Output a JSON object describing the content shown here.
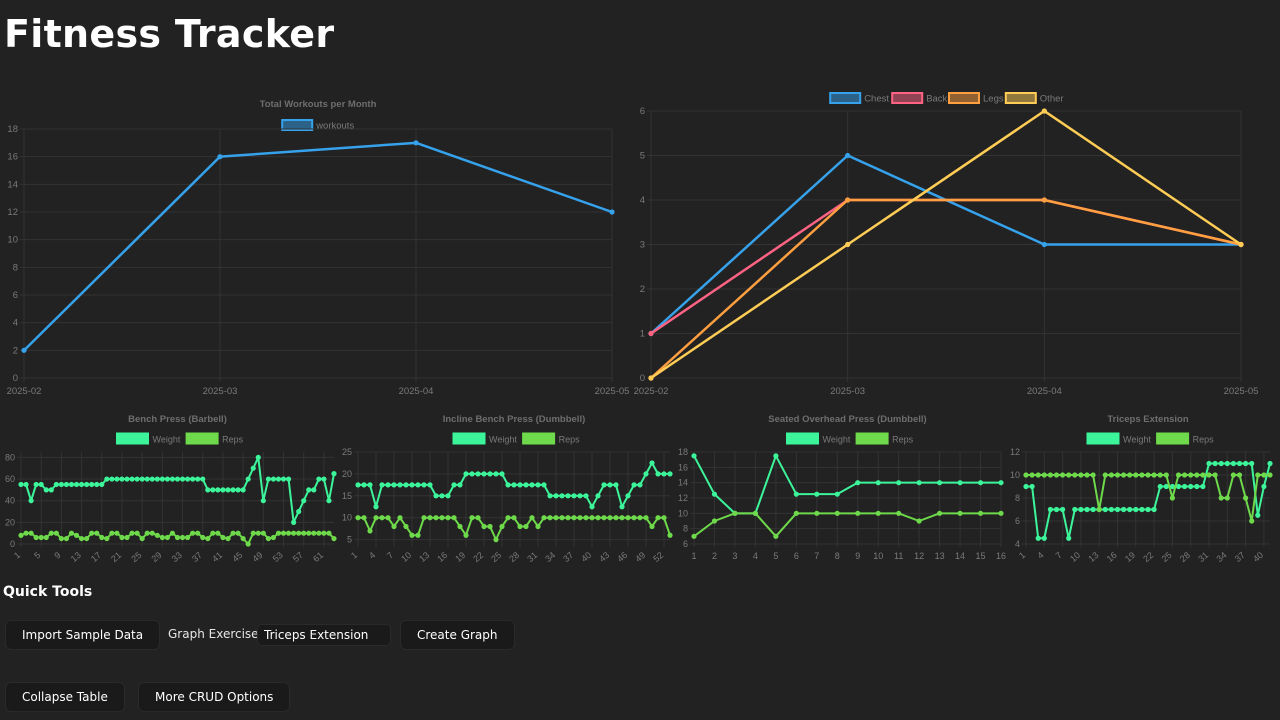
{
  "page": {
    "title": "Fitness Tracker",
    "quick_tools": {
      "heading": "Quick Tools",
      "import_label": "Import Sample Data",
      "graph_exercise_label": "Graph Exercise:",
      "graph_exercise_value": "Triceps Extension",
      "create_graph_label": "Create Graph",
      "collapse_table_label": "Collapse Table",
      "more_crud_label": "More CRUD Options"
    }
  },
  "colors": {
    "blue": "#36a2eb",
    "red": "#ff6384",
    "orange": "#ff9f40",
    "yellow": "#ffcd56",
    "weight": "#3cf59a",
    "reps": "#6ed94a",
    "grid": "#333333",
    "tick": "#7a7a7a",
    "title": "#6e6e6e"
  },
  "chart_data": [
    {
      "type": "line",
      "title": "Total Workouts per Month",
      "categories": [
        "2025-02",
        "2025-03",
        "2025-04",
        "2025-05"
      ],
      "series": [
        {
          "name": "workouts",
          "values": [
            2,
            16,
            17,
            12
          ]
        }
      ],
      "ylim": [
        0,
        18
      ],
      "yticks": [
        0,
        2,
        4,
        6,
        8,
        10,
        12,
        14,
        16,
        18
      ],
      "legend": "top"
    },
    {
      "type": "line",
      "title": "",
      "categories": [
        "2025-02",
        "2025-03",
        "2025-04",
        "2025-05"
      ],
      "series": [
        {
          "name": "Chest",
          "values": [
            1,
            5,
            3,
            3
          ]
        },
        {
          "name": "Back",
          "values": [
            1,
            4,
            4,
            3
          ]
        },
        {
          "name": "Legs",
          "values": [
            0,
            4,
            4,
            3
          ]
        },
        {
          "name": "Other",
          "values": [
            0,
            3,
            6,
            3
          ]
        }
      ],
      "ylim": [
        0,
        6
      ],
      "yticks": [
        0,
        1,
        2,
        3,
        4,
        5,
        6
      ],
      "legend": "top"
    },
    {
      "type": "line",
      "title": "Bench Press (Barbell)",
      "x": [
        1,
        2,
        3,
        4,
        5,
        6,
        7,
        8,
        9,
        10,
        11,
        12,
        13,
        14,
        15,
        16,
        17,
        18,
        19,
        20,
        21,
        22,
        23,
        24,
        25,
        26,
        27,
        28,
        29,
        30,
        31,
        32,
        33,
        34,
        35,
        36,
        37,
        38,
        39,
        40,
        41,
        42,
        43,
        44,
        45,
        46,
        47,
        48,
        49,
        50,
        51,
        52,
        53,
        54,
        55,
        56,
        57,
        58,
        59,
        60,
        61,
        62,
        63
      ],
      "xticks": [
        1,
        5,
        9,
        13,
        17,
        21,
        25,
        29,
        33,
        37,
        41,
        45,
        49,
        53,
        57,
        61
      ],
      "series": [
        {
          "name": "Weight",
          "values": [
            55,
            55,
            40,
            55,
            55,
            50,
            50,
            55,
            55,
            55,
            55,
            55,
            55,
            55,
            55,
            55,
            55,
            60,
            60,
            60,
            60,
            60,
            60,
            60,
            60,
            60,
            60,
            60,
            60,
            60,
            60,
            60,
            60,
            60,
            60,
            60,
            60,
            50,
            50,
            50,
            50,
            50,
            50,
            50,
            50,
            60,
            70,
            80,
            40,
            60,
            60,
            60,
            60,
            60,
            20,
            30,
            40,
            50,
            50,
            60,
            60,
            40,
            65
          ]
        },
        {
          "name": "Reps",
          "values": [
            8,
            10,
            10,
            6,
            6,
            6,
            10,
            10,
            5,
            5,
            10,
            8,
            5,
            5,
            10,
            10,
            6,
            5,
            10,
            10,
            6,
            6,
            10,
            10,
            5,
            10,
            10,
            8,
            6,
            6,
            10,
            6,
            6,
            6,
            10,
            10,
            6,
            5,
            10,
            10,
            6,
            5,
            10,
            10,
            5,
            0,
            10,
            10,
            10,
            5,
            6,
            10,
            10,
            10,
            10,
            10,
            10,
            10,
            10,
            10,
            10,
            10,
            5
          ]
        }
      ],
      "ylim": [
        0,
        85
      ],
      "yticks": [
        0,
        20,
        40,
        60,
        80
      ],
      "legend": "top"
    },
    {
      "type": "line",
      "title": "Incline Bench Press (Dumbbell)",
      "x": [
        1,
        2,
        3,
        4,
        5,
        6,
        7,
        8,
        9,
        10,
        11,
        12,
        13,
        14,
        15,
        16,
        17,
        18,
        19,
        20,
        21,
        22,
        23,
        24,
        25,
        26,
        27,
        28,
        29,
        30,
        31,
        32,
        33,
        34,
        35,
        36,
        37,
        38,
        39,
        40,
        41,
        42,
        43,
        44,
        45,
        46,
        47,
        48,
        49,
        50,
        51,
        52,
        53
      ],
      "xticks": [
        1,
        4,
        7,
        10,
        13,
        16,
        19,
        22,
        25,
        28,
        31,
        34,
        37,
        40,
        43,
        46,
        49,
        52
      ],
      "series": [
        {
          "name": "Weight",
          "values": [
            17.5,
            17.5,
            17.5,
            12.5,
            17.5,
            17.5,
            17.5,
            17.5,
            17.5,
            17.5,
            17.5,
            17.5,
            17.5,
            15,
            15,
            15,
            17.5,
            17.5,
            20,
            20,
            20,
            20,
            20,
            20,
            20,
            17.5,
            17.5,
            17.5,
            17.5,
            17.5,
            17.5,
            17.5,
            15,
            15,
            15,
            15,
            15,
            15,
            15,
            12.5,
            15,
            17.5,
            17.5,
            17.5,
            12.5,
            15,
            17.5,
            17.5,
            20,
            22.5,
            20,
            20,
            20
          ]
        },
        {
          "name": "Reps",
          "values": [
            10,
            10,
            7,
            10,
            10,
            10,
            8,
            10,
            8,
            6,
            6,
            10,
            10,
            10,
            10,
            10,
            10,
            8,
            6,
            10,
            10,
            8,
            8,
            5,
            8,
            10,
            10,
            8,
            8,
            10,
            8,
            10,
            10,
            10,
            10,
            10,
            10,
            10,
            10,
            10,
            10,
            10,
            10,
            10,
            10,
            10,
            10,
            10,
            10,
            8,
            10,
            10,
            6
          ]
        }
      ],
      "ylim": [
        4,
        25
      ],
      "yticks": [
        5,
        10,
        15,
        20,
        25
      ],
      "legend": "top"
    },
    {
      "type": "line",
      "title": "Seated Overhead Press (Dumbbell)",
      "x": [
        1,
        2,
        3,
        4,
        5,
        6,
        7,
        8,
        9,
        10,
        11,
        12,
        13,
        14,
        15,
        16
      ],
      "xticks": [
        1,
        2,
        3,
        4,
        5,
        6,
        7,
        8,
        9,
        10,
        11,
        12,
        13,
        14,
        15,
        16
      ],
      "series": [
        {
          "name": "Weight",
          "values": [
            17.5,
            12.5,
            10,
            10,
            17.5,
            12.5,
            12.5,
            12.5,
            14,
            14,
            14,
            14,
            14,
            14,
            14,
            14
          ]
        },
        {
          "name": "Reps",
          "values": [
            7,
            9,
            10,
            10,
            7,
            10,
            10,
            10,
            10,
            10,
            10,
            9,
            10,
            10,
            10,
            10
          ]
        }
      ],
      "ylim": [
        6,
        18
      ],
      "yticks": [
        6,
        8,
        10,
        12,
        14,
        16,
        18
      ],
      "legend": "top"
    },
    {
      "type": "line",
      "title": "Triceps Extension",
      "x": [
        1,
        2,
        3,
        4,
        5,
        6,
        7,
        8,
        9,
        10,
        11,
        12,
        13,
        14,
        15,
        16,
        17,
        18,
        19,
        20,
        21,
        22,
        23,
        24,
        25,
        26,
        27,
        28,
        29,
        30,
        31,
        32,
        33,
        34,
        35,
        36,
        37,
        38,
        39,
        40,
        41
      ],
      "xticks": [
        1,
        4,
        7,
        10,
        13,
        16,
        19,
        22,
        25,
        28,
        31,
        34,
        37,
        40
      ],
      "series": [
        {
          "name": "Weight",
          "values": [
            9,
            9,
            4.5,
            4.5,
            7,
            7,
            7,
            4.5,
            7,
            7,
            7,
            7,
            7,
            7,
            7,
            7,
            7,
            7,
            7,
            7,
            7,
            7,
            9,
            9,
            9,
            9,
            9,
            9,
            9,
            9,
            11,
            11,
            11,
            11,
            11,
            11,
            11,
            11,
            6.5,
            9,
            11
          ]
        },
        {
          "name": "Reps",
          "values": [
            10,
            10,
            10,
            10,
            10,
            10,
            10,
            10,
            10,
            10,
            10,
            10,
            7,
            10,
            10,
            10,
            10,
            10,
            10,
            10,
            10,
            10,
            10,
            10,
            8,
            10,
            10,
            10,
            10,
            10,
            10,
            10,
            8,
            8,
            10,
            10,
            8,
            6,
            10,
            10,
            10
          ]
        }
      ],
      "ylim": [
        4,
        12
      ],
      "yticks": [
        4,
        6,
        8,
        10,
        12
      ],
      "legend": "top"
    }
  ]
}
